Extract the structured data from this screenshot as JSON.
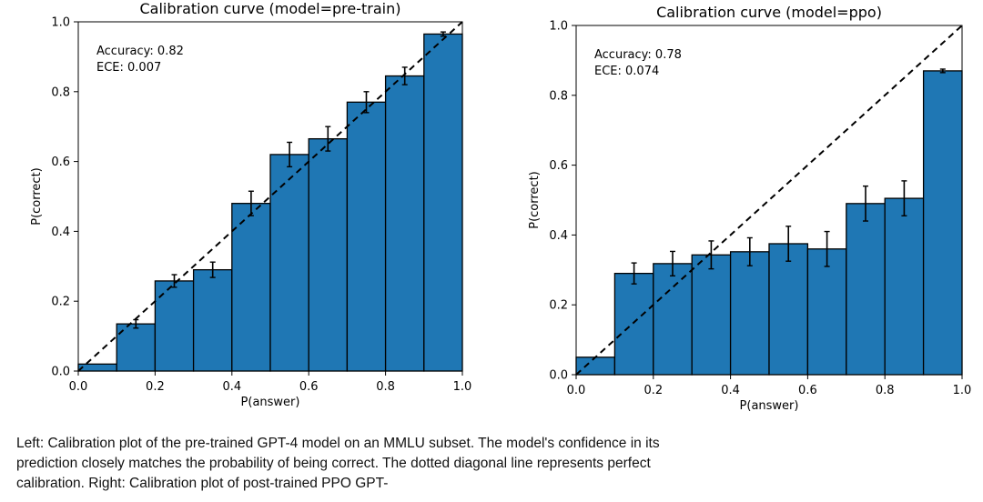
{
  "chart_data": [
    {
      "type": "bar",
      "title": "Calibration curve (model=pre-train)",
      "xlabel": "P(answer)",
      "ylabel": "P(correct)",
      "xlim": [
        0.0,
        1.0
      ],
      "ylim": [
        0.0,
        1.0
      ],
      "xticks": [
        "0.0",
        "0.2",
        "0.4",
        "0.6",
        "0.8",
        "1.0"
      ],
      "yticks": [
        "0.0",
        "0.2",
        "0.4",
        "0.6",
        "0.8",
        "1.0"
      ],
      "bin_edges": [
        0.0,
        0.1,
        0.2,
        0.3,
        0.4,
        0.5,
        0.6,
        0.7,
        0.8,
        0.9,
        1.0
      ],
      "values": [
        0.02,
        0.135,
        0.258,
        0.29,
        0.48,
        0.62,
        0.665,
        0.77,
        0.845,
        0.965
      ],
      "errors": [
        0.0,
        0.012,
        0.018,
        0.022,
        0.035,
        0.035,
        0.035,
        0.03,
        0.025,
        0.006
      ],
      "annotations": [
        "Accuracy: 0.82",
        "ECE: 0.007"
      ],
      "bar_color": "#1f77b4",
      "diagonal": true
    },
    {
      "type": "bar",
      "title": "Calibration curve (model=ppo)",
      "xlabel": "P(answer)",
      "ylabel": "P(correct)",
      "xlim": [
        0.0,
        1.0
      ],
      "ylim": [
        0.0,
        1.0
      ],
      "xticks": [
        "0.0",
        "0.2",
        "0.4",
        "0.6",
        "0.8",
        "1.0"
      ],
      "yticks": [
        "0.0",
        "0.2",
        "0.4",
        "0.6",
        "0.8",
        "1.0"
      ],
      "bin_edges": [
        0.0,
        0.1,
        0.2,
        0.3,
        0.4,
        0.5,
        0.6,
        0.7,
        0.8,
        0.9,
        1.0
      ],
      "values": [
        0.05,
        0.29,
        0.318,
        0.343,
        0.352,
        0.375,
        0.36,
        0.49,
        0.505,
        0.87
      ],
      "errors": [
        0.0,
        0.03,
        0.035,
        0.04,
        0.04,
        0.05,
        0.05,
        0.05,
        0.05,
        0.005
      ],
      "annotations": [
        "Accuracy: 0.78",
        "ECE: 0.074"
      ],
      "bar_color": "#1f77b4",
      "diagonal": true
    }
  ],
  "caption": "Left: Calibration plot of the pre-trained GPT-4 model on an MMLU subset. The model's confidence in its prediction closely matches the probability of being correct. The dotted diagonal line represents perfect calibration. Right: Calibration plot of post-trained PPO GPT-"
}
